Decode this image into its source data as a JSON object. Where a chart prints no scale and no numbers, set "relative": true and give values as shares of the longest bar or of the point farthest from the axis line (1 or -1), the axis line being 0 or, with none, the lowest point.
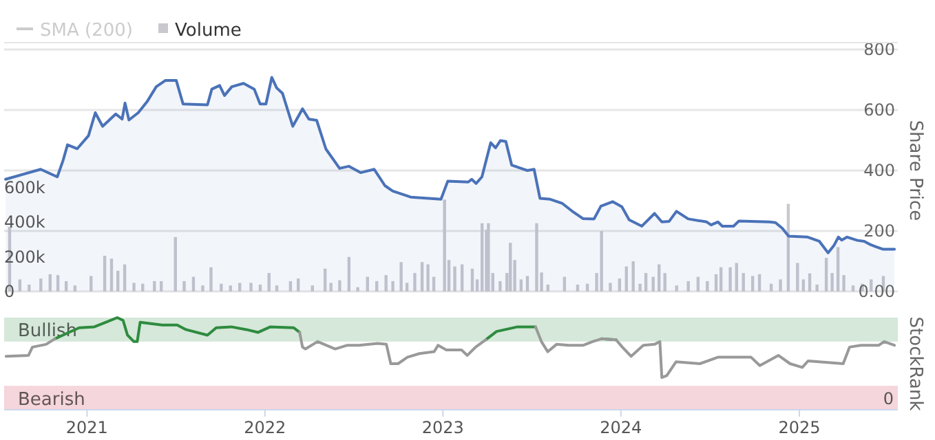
{
  "chart_data": [
    {
      "type": "line",
      "legend": "top left",
      "grid": "y",
      "tick_labels": "y",
      "ylabel": "Share Price",
      "xlim": [
        "2020-07-15",
        "2025-07-22"
      ],
      "ylim": [
        0,
        800
      ],
      "yticks": [
        {
          "value": 0,
          "label": "0.00"
        },
        200,
        400,
        600,
        800
      ],
      "y2lim": [
        0,
        1400000
      ],
      "y2ticks": [
        {
          "value": 0,
          "label": "0"
        },
        {
          "value": 200000,
          "label": "200k"
        },
        {
          "value": 400000,
          "label": "400k"
        },
        {
          "value": 600000,
          "label": "600k"
        }
      ],
      "series": [
        {
          "name": "SMA (200)",
          "type": "line",
          "color": "#cccccc"
        },
        {
          "name": "Volume",
          "type": "bar",
          "axis": "y2",
          "color": "#c8c8ce",
          "x": [
            "2020-07-26",
            "2020-08-16",
            "2020-09-04",
            "2020-09-28",
            "2020-10-17",
            "2020-11-02",
            "2020-11-19",
            "2020-12-07",
            "2021-01-09",
            "2021-02-06",
            "2021-02-20",
            "2021-03-05",
            "2021-03-19",
            "2021-04-07",
            "2021-04-25",
            "2021-05-19",
            "2021-06-02",
            "2021-07-01",
            "2021-07-19",
            "2021-08-07",
            "2021-08-26",
            "2021-09-12",
            "2021-10-03",
            "2021-10-22",
            "2021-11-10",
            "2021-12-03",
            "2021-12-22",
            "2022-01-09",
            "2022-01-25",
            "2022-02-22",
            "2022-03-10",
            "2022-04-08",
            "2022-05-04",
            "2022-05-16",
            "2022-06-03",
            "2022-06-22",
            "2022-07-10",
            "2022-07-30",
            "2022-08-18",
            "2022-09-06",
            "2022-09-20",
            "2022-10-07",
            "2022-10-19",
            "2022-11-04",
            "2022-11-19",
            "2022-12-01",
            "2022-12-13",
            "2023-01-04",
            "2023-01-13",
            "2023-01-25",
            "2023-02-09",
            "2023-03-02",
            "2023-03-12",
            "2023-03-22",
            "2023-03-31",
            "2023-04-04",
            "2023-04-13",
            "2023-04-28",
            "2023-05-12",
            "2023-05-19",
            "2023-05-28",
            "2023-06-10",
            "2023-06-23",
            "2023-07-12",
            "2023-07-22",
            "2023-08-04",
            "2023-09-07",
            "2023-10-04",
            "2023-10-24",
            "2023-11-12",
            "2023-11-22",
            "2023-12-10",
            "2023-12-29",
            "2024-01-12",
            "2024-01-26",
            "2024-02-09",
            "2024-02-21",
            "2024-03-07",
            "2024-03-19",
            "2024-03-31",
            "2024-04-24",
            "2024-05-18",
            "2024-06-07",
            "2024-06-26",
            "2024-07-14",
            "2024-07-24",
            "2024-08-12",
            "2024-08-25",
            "2024-09-08",
            "2024-09-27",
            "2024-10-11",
            "2024-11-04",
            "2024-11-23",
            "2024-12-09",
            "2024-12-28",
            "2025-01-09",
            "2025-01-22",
            "2025-02-06",
            "2025-02-25",
            "2025-03-09",
            "2025-03-21",
            "2025-04-02",
            "2025-04-21",
            "2025-05-10",
            "2025-05-28",
            "2025-06-22"
          ],
          "values": [
            374000,
            70000,
            40000,
            75000,
            100000,
            95000,
            60000,
            35000,
            90000,
            207000,
            190000,
            120000,
            157000,
            50000,
            45000,
            60000,
            60000,
            315000,
            60000,
            85000,
            35000,
            140000,
            45000,
            35000,
            50000,
            50000,
            40000,
            107000,
            35000,
            60000,
            75000,
            35000,
            132000,
            50000,
            65000,
            200000,
            25000,
            85000,
            60000,
            95000,
            60000,
            170000,
            50000,
            107000,
            170000,
            157000,
            85000,
            532000,
            182000,
            145000,
            157000,
            132000,
            70000,
            395000,
            357000,
            395000,
            107000,
            60000,
            107000,
            282000,
            182000,
            70000,
            90000,
            395000,
            110000,
            40000,
            85000,
            40000,
            45000,
            107000,
            350000,
            50000,
            75000,
            145000,
            175000,
            45000,
            107000,
            85000,
            157000,
            107000,
            35000,
            60000,
            85000,
            60000,
            100000,
            140000,
            140000,
            165000,
            107000,
            90000,
            100000,
            45000,
            70000,
            507000,
            165000,
            70000,
            105000,
            40000,
            195000,
            107000,
            257000,
            95000,
            35000,
            45000,
            70000,
            90000
          ]
        },
        {
          "type": "area",
          "color": "#4a72b8",
          "x": [
            "2020-07-18",
            "2020-09-28",
            "2020-11-01",
            "2020-11-13",
            "2020-11-22",
            "2020-12-12",
            "2021-01-04",
            "2021-01-18",
            "2021-02-02",
            "2021-03-01",
            "2021-03-14",
            "2021-03-20",
            "2021-03-28",
            "2021-04-16",
            "2021-05-04",
            "2021-05-23",
            "2021-06-11",
            "2021-07-03",
            "2021-07-17",
            "2021-09-05",
            "2021-09-14",
            "2021-09-30",
            "2021-10-10",
            "2021-10-25",
            "2021-11-18",
            "2021-12-10",
            "2021-12-22",
            "2022-01-03",
            "2022-01-15",
            "2022-01-25",
            "2022-02-06",
            "2022-02-27",
            "2022-03-19",
            "2022-04-01",
            "2022-04-17",
            "2022-05-06",
            "2022-06-03",
            "2022-06-22",
            "2022-07-16",
            "2022-08-13",
            "2022-09-04",
            "2022-09-20",
            "2022-10-27",
            "2022-12-28",
            "2023-01-11",
            "2023-02-22",
            "2023-03-01",
            "2023-03-10",
            "2023-03-22",
            "2023-04-09",
            "2023-04-19",
            "2023-04-29",
            "2023-05-10",
            "2023-05-22",
            "2023-06-23",
            "2023-07-07",
            "2023-07-19",
            "2023-08-09",
            "2023-09-03",
            "2023-09-26",
            "2023-10-15",
            "2023-11-07",
            "2023-11-21",
            "2023-12-15",
            "2024-01-03",
            "2024-01-18",
            "2024-02-13",
            "2024-03-10",
            "2024-03-25",
            "2024-04-09",
            "2024-04-24",
            "2024-05-18",
            "2024-06-25",
            "2024-07-04",
            "2024-07-18",
            "2024-07-27",
            "2024-08-19",
            "2024-08-30",
            "2024-10-31",
            "2024-11-13",
            "2024-11-27",
            "2024-12-10",
            "2025-01-18",
            "2025-02-11",
            "2025-03-01",
            "2025-03-13",
            "2025-03-22",
            "2025-03-29",
            "2025-04-09",
            "2025-04-30",
            "2025-05-14",
            "2025-05-28",
            "2025-06-21",
            "2025-07-15"
          ],
          "values": [
            371,
            404,
            379,
            434,
            485,
            472,
            515,
            591,
            546,
            587,
            570,
            623,
            567,
            591,
            627,
            677,
            698,
            698,
            620,
            617,
            669,
            681,
            648,
            677,
            688,
            669,
            620,
            620,
            708,
            673,
            655,
            546,
            604,
            570,
            566,
            471,
            407,
            414,
            393,
            404,
            350,
            332,
            312,
            305,
            365,
            362,
            371,
            357,
            379,
            492,
            475,
            499,
            496,
            418,
            400,
            404,
            308,
            305,
            291,
            262,
            241,
            240,
            282,
            297,
            280,
            237,
            216,
            258,
            230,
            232,
            265,
            240,
            230,
            220,
            230,
            216,
            216,
            233,
            230,
            228,
            209,
            183,
            180,
            166,
            128,
            152,
            180,
            170,
            180,
            169,
            166,
            154,
            140,
            140
          ]
        }
      ]
    },
    {
      "type": "line",
      "relative": true,
      "ylabel": "StockRank",
      "tick_labels": "x",
      "xlim": [
        "2020-07-15",
        "2025-07-22"
      ],
      "xticks": [
        {
          "value": "2021-01-01",
          "label": "2021"
        },
        {
          "value": "2022-01-01",
          "label": "2022"
        },
        {
          "value": "2023-01-01",
          "label": "2023"
        },
        {
          "value": "2024-01-01",
          "label": "2024"
        },
        {
          "value": "2025-01-01",
          "label": "2025"
        }
      ],
      "annotations": [
        "0"
      ],
      "bands": [
        {
          "axis": "y",
          "from": 0.74,
          "to": 1,
          "label": "Bullish",
          "color": "#d5e8d9"
        },
        {
          "axis": "y",
          "from": 0,
          "to": 0.26,
          "label": "Bearish",
          "color": "#f5d6dc"
        }
      ],
      "x": [
        "2020-07-19",
        "2020-09-03",
        "2020-09-11",
        "2020-10-09",
        "2020-10-27",
        "2020-11-21",
        "2020-12-16",
        "2021-01-16",
        "2021-02-09",
        "2021-03-04",
        "2021-03-16",
        "2021-03-25",
        "2021-04-07",
        "2021-04-14",
        "2021-04-20",
        "2021-05-04",
        "2021-06-04",
        "2021-07-05",
        "2021-07-23",
        "2021-09-05",
        "2021-09-23",
        "2021-10-24",
        "2021-11-24",
        "2021-12-18",
        "2022-01-12",
        "2022-03-01",
        "2022-03-13",
        "2022-03-19",
        "2022-03-25",
        "2022-04-19",
        "2022-05-25",
        "2022-06-19",
        "2022-07-13",
        "2022-08-20",
        "2022-09-07",
        "2022-09-16",
        "2022-10-01",
        "2022-10-20",
        "2022-11-14",
        "2022-12-14",
        "2022-12-22",
        "2023-01-08",
        "2023-02-08",
        "2023-02-20",
        "2023-03-09",
        "2023-03-30",
        "2023-04-21",
        "2023-06-03",
        "2023-07-10",
        "2023-07-22",
        "2023-08-04",
        "2023-08-22",
        "2023-09-16",
        "2023-10-16",
        "2023-11-04",
        "2023-11-22",
        "2023-12-22",
        "2024-01-04",
        "2024-01-22",
        "2024-02-16",
        "2024-03-10",
        "2024-03-21",
        "2024-03-25",
        "2024-04-04",
        "2024-04-23",
        "2024-06-11",
        "2024-07-18",
        "2024-09-24",
        "2024-10-12",
        "2024-11-19",
        "2024-12-13",
        "2025-01-07",
        "2025-01-19",
        "2025-04-01",
        "2025-04-14",
        "2025-05-07",
        "2025-06-13",
        "2025-06-24",
        "2025-07-15"
      ],
      "series": [
        {
          "color": "#2e8b3e",
          "values": [
            null,
            null,
            null,
            null,
            0.77,
            0.83,
            0.89,
            0.9,
            0.95,
            1,
            0.97,
            0.81,
            0.74,
            0.74,
            0.95,
            0.94,
            0.92,
            0.92,
            0.87,
            0.81,
            0.89,
            0.9,
            0.87,
            0.84,
            0.9,
            0.89,
            0.84,
            null,
            null,
            null,
            null,
            null,
            null,
            null,
            null,
            null,
            null,
            null,
            null,
            null,
            null,
            null,
            null,
            null,
            null,
            0.76,
            0.85,
            0.9,
            0.9,
            null,
            null,
            null,
            null,
            null,
            null,
            0.77,
            0.76,
            null,
            null,
            null,
            null,
            null,
            null,
            null,
            null,
            null,
            null,
            null,
            null,
            null,
            null,
            null,
            null,
            null,
            null,
            null,
            null,
            null,
            null
          ]
        },
        {
          "color": "#999999",
          "values": [
            0.58,
            0.59,
            0.68,
            0.71,
            0.77,
            null,
            null,
            null,
            null,
            null,
            null,
            null,
            null,
            null,
            null,
            null,
            null,
            null,
            null,
            null,
            null,
            null,
            null,
            null,
            null,
            null,
            0.84,
            0.68,
            0.66,
            0.74,
            0.66,
            0.7,
            0.7,
            0.72,
            0.71,
            0.5,
            0.5,
            0.57,
            0.61,
            0.63,
            0.7,
            0.65,
            0.65,
            0.59,
            0.68,
            0.76,
            null,
            null,
            0.9,
            0.74,
            0.63,
            0.71,
            0.7,
            0.7,
            0.74,
            0.77,
            0.76,
            0.68,
            0.58,
            0.7,
            0.71,
            0.74,
            0.35,
            0.37,
            0.52,
            0.5,
            0.57,
            0.57,
            0.48,
            0.59,
            0.5,
            0.46,
            0.53,
            0.5,
            0.68,
            0.7,
            0.7,
            0.74,
            0.7
          ]
        }
      ]
    }
  ]
}
